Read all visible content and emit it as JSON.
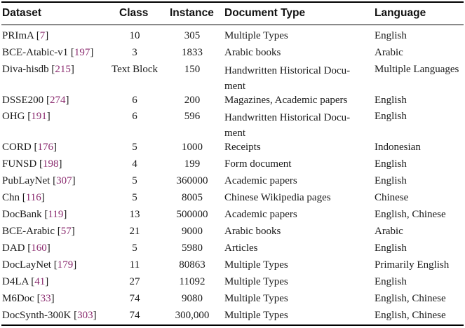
{
  "table": {
    "headers": {
      "dataset": "Dataset",
      "class": "Class",
      "instance": "Instance",
      "doc_type": "Document Type",
      "language": "Language"
    },
    "rows": [
      {
        "name": "PRImA",
        "ref": "7",
        "class": "10",
        "instance": "305",
        "doc_type": "Multiple Types",
        "language": "English"
      },
      {
        "name": "BCE-Atabic-v1",
        "ref": "197",
        "class": "3",
        "instance": "1833",
        "doc_type": "Arabic books",
        "language": "Arabic"
      },
      {
        "name": "Diva-hisdb",
        "ref": "215",
        "class": "Text Block",
        "instance": "150",
        "doc_type": "Handwritten Historical Docu-ment",
        "language": "Multiple Languages"
      },
      {
        "name": "DSSE200",
        "ref": "274",
        "class": "6",
        "instance": "200",
        "doc_type": "Magazines, Academic papers",
        "language": "English"
      },
      {
        "name": "OHG",
        "ref": "191",
        "class": "6",
        "instance": "596",
        "doc_type": "Handwritten Historical Docu-ment",
        "language": "English"
      },
      {
        "name": "CORD",
        "ref": "176",
        "class": "5",
        "instance": "1000",
        "doc_type": "Receipts",
        "language": "Indonesian"
      },
      {
        "name": "FUNSD",
        "ref": "198",
        "class": "4",
        "instance": "199",
        "doc_type": "Form document",
        "language": "English"
      },
      {
        "name": "PubLayNet",
        "ref": "307",
        "class": "5",
        "instance": "360000",
        "doc_type": "Academic papers",
        "language": "English"
      },
      {
        "name": "Chn",
        "ref": "116",
        "class": "5",
        "instance": "8005",
        "doc_type": "Chinese Wikipedia pages",
        "language": "Chinese"
      },
      {
        "name": "DocBank",
        "ref": "119",
        "class": "13",
        "instance": "500000",
        "doc_type": "Academic papers",
        "language": "English, Chinese"
      },
      {
        "name": "BCE-Arabic",
        "ref": "57",
        "class": "21",
        "instance": "9000",
        "doc_type": "Arabic books",
        "language": "Arabic"
      },
      {
        "name": "DAD",
        "ref": "160",
        "class": "5",
        "instance": "5980",
        "doc_type": "Articles",
        "language": "English"
      },
      {
        "name": "DocLayNet",
        "ref": "179",
        "class": "11",
        "instance": "80863",
        "doc_type": "Multiple Types",
        "language": "Primarily English"
      },
      {
        "name": "D4LA",
        "ref": "41",
        "class": "27",
        "instance": "11092",
        "doc_type": "Multiple Types",
        "language": "English"
      },
      {
        "name": "M6Doc",
        "ref": "33",
        "class": "74",
        "instance": "9080",
        "doc_type": "Multiple Types",
        "language": "English, Chinese"
      },
      {
        "name": "DocSynth-300K",
        "ref": "303",
        "class": "74",
        "instance": "300,000",
        "doc_type": "Multiple Types",
        "language": "English, Chinese"
      }
    ]
  }
}
